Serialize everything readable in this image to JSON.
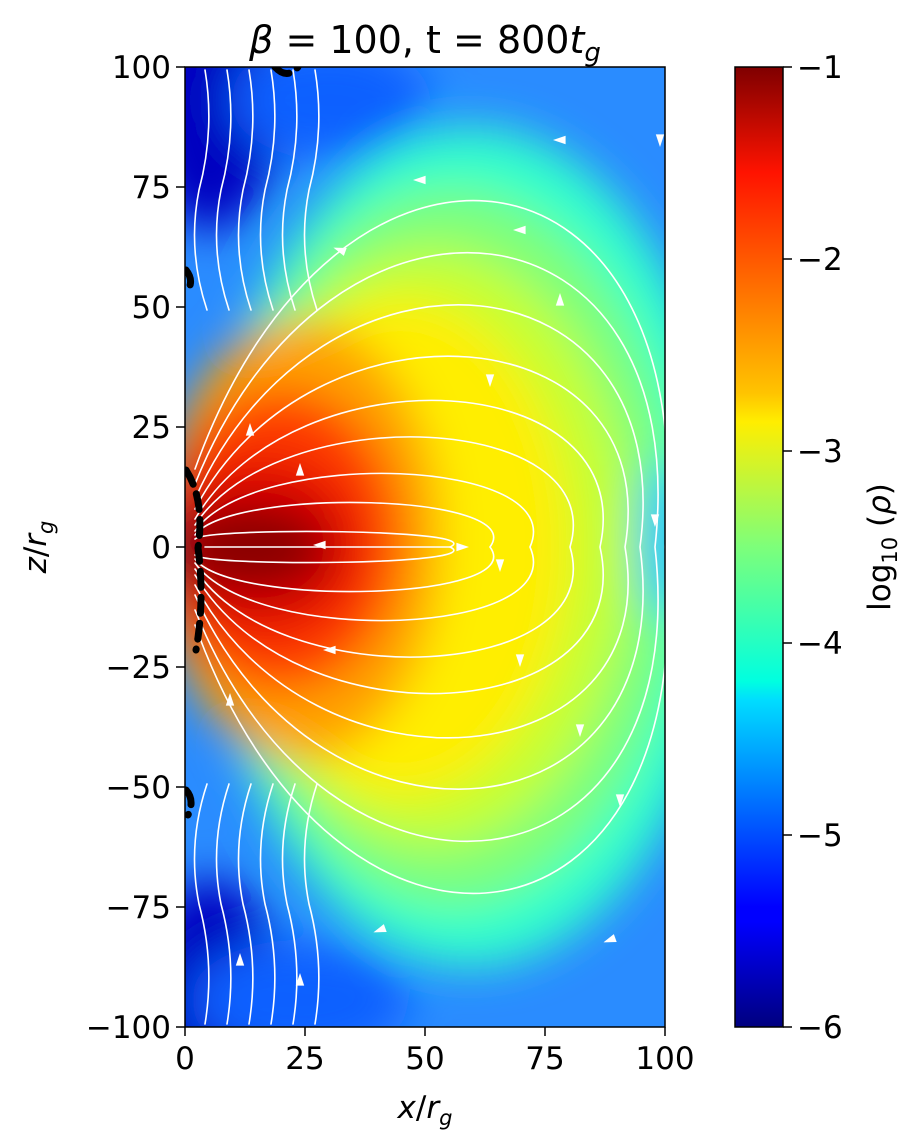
{
  "chart_data": {
    "type": "heatmap",
    "title": "β = 100, t = 800t_g",
    "xlabel": "x/r_g",
    "ylabel": "z/r_g",
    "xlim": [
      0,
      100
    ],
    "ylim": [
      -100,
      100
    ],
    "x_ticks": [
      {
        "value": 0,
        "label": "0"
      },
      {
        "value": 25,
        "label": "25"
      },
      {
        "value": 50,
        "label": "50"
      },
      {
        "value": 75,
        "label": "75"
      },
      {
        "value": 100,
        "label": "100"
      }
    ],
    "y_ticks": [
      {
        "value": 100,
        "label": "100"
      },
      {
        "value": 75,
        "label": "75"
      },
      {
        "value": 50,
        "label": "50"
      },
      {
        "value": 25,
        "label": "25"
      },
      {
        "value": 0,
        "label": "0"
      },
      {
        "value": -25,
        "label": "−25"
      },
      {
        "value": -50,
        "label": "−50"
      },
      {
        "value": -75,
        "label": "−75"
      },
      {
        "value": -100,
        "label": "−100"
      }
    ],
    "colorbar": {
      "label": "log₁₀ (ρ)",
      "range": [
        -6,
        -1
      ],
      "colormap": "jet",
      "ticks": [
        {
          "value": -1,
          "label": "−1"
        },
        {
          "value": -2,
          "label": "−2"
        },
        {
          "value": -3,
          "label": "−3"
        },
        {
          "value": -4,
          "label": "−4"
        },
        {
          "value": -5,
          "label": "−5"
        },
        {
          "value": -6,
          "label": "−6"
        }
      ]
    },
    "overlay": {
      "streamlines": {
        "color": "#ffffff"
      },
      "boundary_contour": {
        "style": "dashed",
        "color": "#000000"
      }
    },
    "grid": false
  }
}
